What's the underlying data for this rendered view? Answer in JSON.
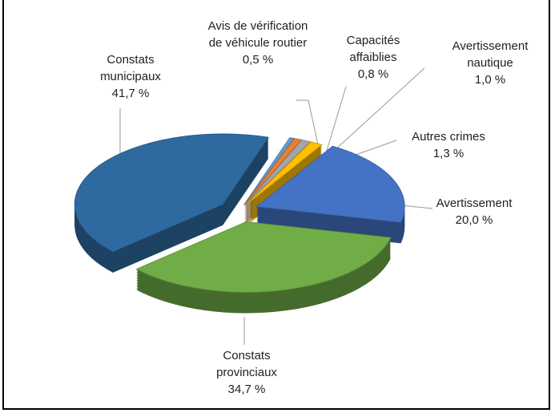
{
  "chart_data": {
    "type": "pie3d",
    "categories": [
      "Avis de vérification de véhicule routier",
      "Capacités affaiblies",
      "Avertissement nautique",
      "Autres crimes",
      "Avertissement",
      "Constats provinciaux",
      "Constats municipaux"
    ],
    "values": [
      0.5,
      0.8,
      1.0,
      1.3,
      20.0,
      34.7,
      41.7
    ],
    "value_labels": [
      "0,5 %",
      "0,8 %",
      "1,0 %",
      "1,3 %",
      "20,0 %",
      "34,7 %",
      "41,7 %"
    ],
    "colors": [
      "#5b9bd5",
      "#ed7d31",
      "#a5a5a5",
      "#ffc000",
      "#4472c4",
      "#70ad47",
      "#2e6aa0"
    ]
  }
}
